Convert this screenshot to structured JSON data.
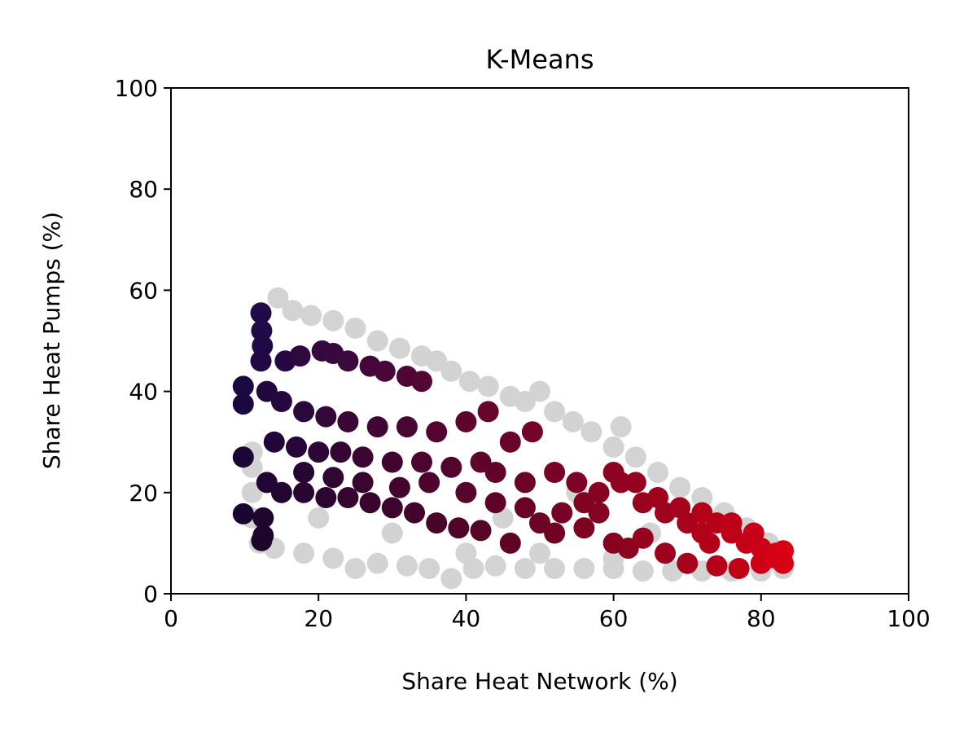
{
  "chart_data": {
    "type": "scatter",
    "title": "K-Means",
    "xlabel": "Share Heat Network (%)",
    "ylabel": "Share Heat Pumps (%)",
    "xlim": [
      0,
      100
    ],
    "ylim": [
      0,
      100
    ],
    "xticks": [
      0,
      20,
      40,
      60,
      80,
      100
    ],
    "yticks": [
      0,
      20,
      40,
      60,
      80,
      100
    ],
    "xtick_labels": [
      "0",
      "20",
      "40",
      "60",
      "80",
      "100"
    ],
    "ytick_labels": [
      "0",
      "20",
      "40",
      "60",
      "80",
      "100"
    ],
    "grid": false,
    "colors": {
      "background_points": "#d3d3d3",
      "gradient_low_x": "#1a0a4a",
      "gradient_high_x": "#dc0012",
      "dark_bottom": "#1a0010"
    },
    "series": [
      {
        "color": "#d3d3d3",
        "points": [
          [
            14.5,
            58.5
          ],
          [
            16.5,
            56
          ],
          [
            19,
            55
          ],
          [
            22,
            54
          ],
          [
            25,
            52.5
          ],
          [
            28,
            50
          ],
          [
            31,
            48.5
          ],
          [
            34,
            47
          ],
          [
            36,
            46
          ],
          [
            38,
            44
          ],
          [
            40.5,
            42
          ],
          [
            43,
            41
          ],
          [
            46,
            39
          ],
          [
            48,
            38
          ],
          [
            50,
            40
          ],
          [
            52,
            36
          ],
          [
            54.5,
            34
          ],
          [
            57,
            32
          ],
          [
            60,
            29
          ],
          [
            61,
            33
          ],
          [
            63,
            27
          ],
          [
            66,
            24
          ],
          [
            69,
            21
          ],
          [
            72,
            19
          ],
          [
            75,
            16
          ],
          [
            78,
            13
          ],
          [
            81,
            10
          ],
          [
            83,
            8
          ],
          [
            11,
            28
          ],
          [
            11,
            25
          ],
          [
            11,
            20
          ],
          [
            11,
            15
          ],
          [
            12,
            10
          ],
          [
            14,
            9
          ],
          [
            18,
            8
          ],
          [
            22,
            7
          ],
          [
            25,
            5
          ],
          [
            28,
            6
          ],
          [
            32,
            5.5
          ],
          [
            35,
            5
          ],
          [
            38,
            3
          ],
          [
            41,
            5
          ],
          [
            44,
            5.5
          ],
          [
            48,
            5
          ],
          [
            52,
            5
          ],
          [
            56,
            5
          ],
          [
            60,
            5
          ],
          [
            64,
            4.5
          ],
          [
            68,
            4.5
          ],
          [
            72,
            4.5
          ],
          [
            76,
            4.5
          ],
          [
            80,
            4.5
          ],
          [
            83,
            5
          ],
          [
            30,
            12
          ],
          [
            40,
            8
          ],
          [
            50,
            8
          ],
          [
            60,
            7
          ],
          [
            70,
            6
          ],
          [
            20,
            15
          ],
          [
            45,
            15
          ],
          [
            55,
            20
          ],
          [
            65,
            12
          ]
        ]
      },
      {
        "color": "gradient",
        "points": [
          [
            12.2,
            55.5
          ],
          [
            12.3,
            52
          ],
          [
            12.4,
            49
          ],
          [
            12.2,
            46
          ],
          [
            9.8,
            41
          ],
          [
            9.8,
            37.5
          ],
          [
            9.8,
            27
          ],
          [
            9.8,
            15.8
          ],
          [
            12.5,
            15
          ],
          [
            12.5,
            11.5
          ],
          [
            12.3,
            10.5
          ],
          [
            15.5,
            46
          ],
          [
            17.5,
            47
          ],
          [
            20.5,
            48
          ],
          [
            22,
            47.5
          ],
          [
            24,
            46
          ],
          [
            27,
            45
          ],
          [
            29,
            44
          ],
          [
            32,
            43
          ],
          [
            34,
            42
          ],
          [
            13,
            40
          ],
          [
            15,
            38
          ],
          [
            18,
            36
          ],
          [
            21,
            35
          ],
          [
            24,
            34
          ],
          [
            28,
            33
          ],
          [
            32,
            33
          ],
          [
            36,
            32
          ],
          [
            40,
            34
          ],
          [
            43,
            36
          ],
          [
            14,
            30
          ],
          [
            17,
            29
          ],
          [
            20,
            28
          ],
          [
            23,
            28
          ],
          [
            26,
            27
          ],
          [
            30,
            26
          ],
          [
            34,
            26
          ],
          [
            38,
            25
          ],
          [
            42,
            26
          ],
          [
            46,
            30
          ],
          [
            49,
            32
          ],
          [
            13,
            22
          ],
          [
            15,
            20
          ],
          [
            18,
            20
          ],
          [
            21,
            19
          ],
          [
            24,
            19
          ],
          [
            27,
            18
          ],
          [
            30,
            17
          ],
          [
            33,
            16
          ],
          [
            36,
            14
          ],
          [
            39,
            13
          ],
          [
            42,
            12.5
          ],
          [
            46,
            10
          ],
          [
            50,
            14
          ],
          [
            53,
            16
          ],
          [
            56,
            18
          ],
          [
            58,
            16
          ],
          [
            60,
            10
          ],
          [
            62,
            9
          ],
          [
            64,
            11
          ],
          [
            67,
            8
          ],
          [
            44,
            24
          ],
          [
            48,
            22
          ],
          [
            52,
            24
          ],
          [
            55,
            22
          ],
          [
            58,
            20
          ],
          [
            61,
            22
          ],
          [
            64,
            18
          ],
          [
            67,
            16
          ],
          [
            70,
            14
          ],
          [
            72,
            12
          ],
          [
            60,
            24
          ],
          [
            63,
            22
          ],
          [
            66,
            19
          ],
          [
            69,
            17
          ],
          [
            72,
            16
          ],
          [
            74,
            14
          ],
          [
            76,
            12
          ],
          [
            78,
            10
          ],
          [
            80,
            9
          ],
          [
            82,
            8
          ],
          [
            70,
            6
          ],
          [
            74,
            5.5
          ],
          [
            77,
            5
          ],
          [
            80,
            6
          ],
          [
            82,
            7
          ],
          [
            83,
            6
          ],
          [
            83,
            8.5
          ],
          [
            79,
            12
          ],
          [
            76,
            14
          ],
          [
            73,
            10
          ],
          [
            18,
            24
          ],
          [
            22,
            23
          ],
          [
            26,
            22
          ],
          [
            31,
            21
          ],
          [
            35,
            22
          ],
          [
            40,
            20
          ],
          [
            44,
            18
          ],
          [
            48,
            17
          ],
          [
            52,
            12
          ],
          [
            56,
            13
          ]
        ]
      }
    ]
  }
}
